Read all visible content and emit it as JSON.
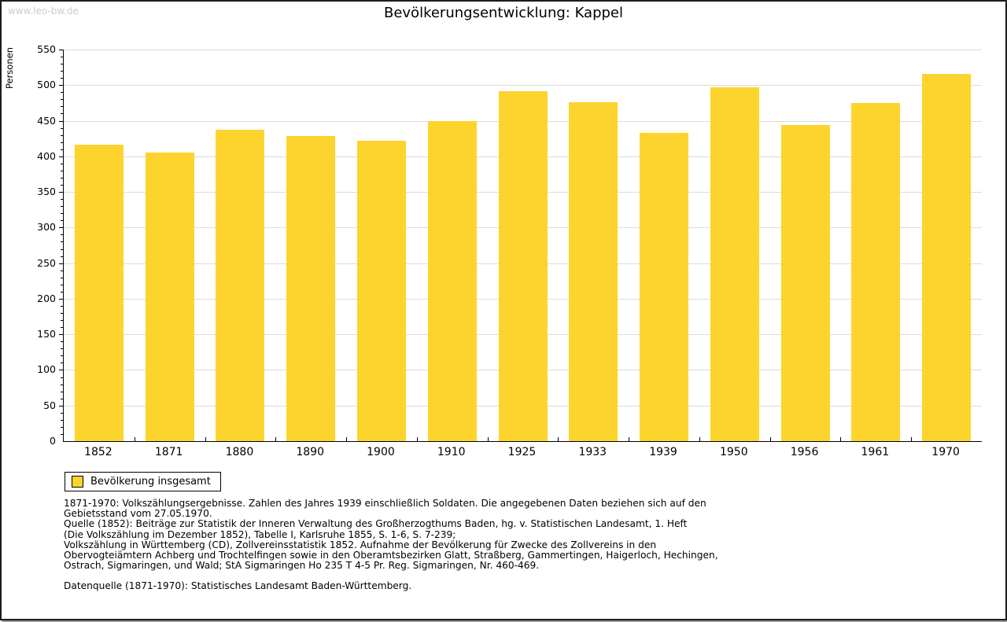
{
  "watermark": "www.leo-bw.de",
  "title": "Bevölkerungsentwicklung: Kappel",
  "chart_data": {
    "type": "bar",
    "title": "Bevölkerungsentwicklung: Kappel",
    "xlabel": "",
    "ylabel": "Personen",
    "categories": [
      "1852",
      "1871",
      "1880",
      "1890",
      "1900",
      "1910",
      "1925",
      "1933",
      "1939",
      "1950",
      "1956",
      "1961",
      "1970"
    ],
    "values": [
      416,
      405,
      437,
      429,
      422,
      450,
      492,
      476,
      433,
      497,
      444,
      475,
      516
    ],
    "ylim": [
      0,
      550
    ],
    "ytick_step": 50,
    "yminor_step": 10,
    "grid": true,
    "bar_color": "#FCD42D",
    "legend_position": "bottom-left",
    "legend": [
      {
        "label": "Bevölkerung insgesamt",
        "color": "#FCD42D"
      }
    ]
  },
  "footer": {
    "notes_lines": [
      "1871-1970: Volkszählungsergebnisse. Zahlen des Jahres 1939 einschließlich Soldaten. Die angegebenen Daten beziehen sich auf den",
      "Gebietsstand vom 27.05.1970.",
      "Quelle (1852): Beiträge zur Statistik der Inneren Verwaltung des Großherzogthums Baden, hg. v. Statistischen Landesamt, 1. Heft",
      "(Die Volkszählung im Dezember 1852), Tabelle I, Karlsruhe 1855, S. 1-6, S. 7-239;",
      "Volkszählung in Württemberg (CD), Zollvereinsstatistik 1852. Aufnahme der Bevölkerung für Zwecke des Zollvereins in den",
      "Obervogteiämtern Achberg und Trochtelfingen sowie in den Oberamtsbezirken Glatt, Straßberg, Gammertingen, Haigerloch, Hechingen,",
      "Ostrach, Sigmaringen, und Wald; StA Sigmaringen Ho 235 T 4-5 Pr. Reg. Sigmaringen, Nr. 460-469."
    ],
    "datasource": "Datenquelle (1871-1970): Statistisches Landesamt Baden-Württemberg."
  },
  "colors": {
    "bar": "#FCD42D",
    "grid": "#DCDCDC",
    "axis": "#000000",
    "watermark": "#CCCCCC"
  }
}
